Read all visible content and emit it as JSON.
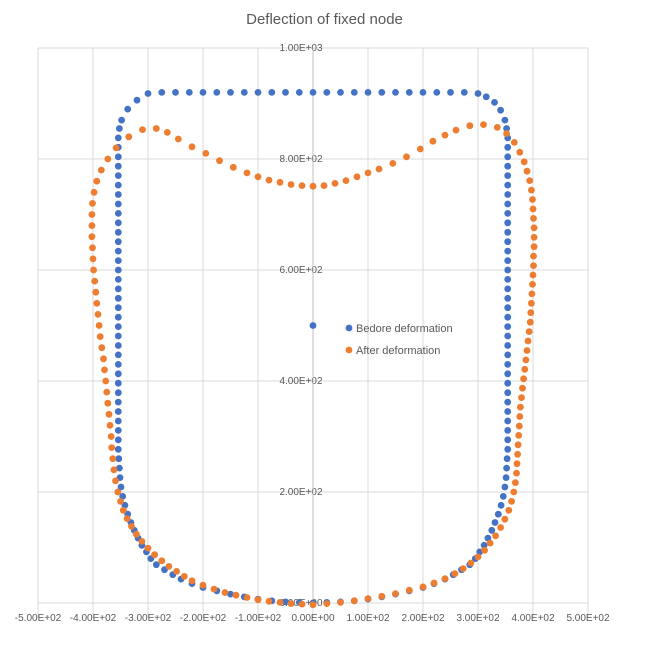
{
  "chart_data": {
    "type": "scatter",
    "title": "Deflection of fixed node",
    "xlabel": "",
    "ylabel": "",
    "xlim": [
      -500,
      500
    ],
    "ylim": [
      0,
      1000
    ],
    "x_ticks": [
      -500,
      -400,
      -300,
      -200,
      -100,
      0,
      100,
      200,
      300,
      400,
      500
    ],
    "x_tick_labels": [
      "-5.00E+02",
      "-4.00E+02",
      "-3.00E+02",
      "-2.00E+02",
      "-1.00E+02",
      "0.00E+00",
      "1.00E+02",
      "2.00E+02",
      "3.00E+02",
      "4.00E+02",
      "5.00E+02"
    ],
    "y_ticks": [
      0,
      200,
      400,
      600,
      800,
      1000
    ],
    "y_tick_labels": [
      "0.00E+00",
      "2.00E+02",
      "4.00E+02",
      "6.00E+02",
      "8.00E+02",
      "1.00E+03"
    ],
    "grid": true,
    "legend_position": "center-right",
    "series": [
      {
        "name": "Bedore deformation",
        "color": "#4472C4",
        "points": [
          [
            0,
            0
          ],
          [
            25,
            1
          ],
          [
            50,
            2
          ],
          [
            75,
            4
          ],
          [
            100,
            7
          ],
          [
            125,
            11
          ],
          [
            150,
            16
          ],
          [
            175,
            22
          ],
          [
            200,
            28
          ],
          [
            220,
            35
          ],
          [
            240,
            43
          ],
          [
            255,
            51
          ],
          [
            270,
            60
          ],
          [
            285,
            69
          ],
          [
            295,
            80
          ],
          [
            303,
            92
          ],
          [
            311,
            104
          ],
          [
            318,
            117
          ],
          [
            325,
            131
          ],
          [
            331,
            145
          ],
          [
            337,
            160
          ],
          [
            342,
            176
          ],
          [
            346,
            192
          ],
          [
            349,
            209
          ],
          [
            351,
            226
          ],
          [
            352,
            243
          ],
          [
            353,
            260
          ],
          [
            354,
            277
          ],
          [
            354,
            294
          ],
          [
            354,
            311
          ],
          [
            354,
            328
          ],
          [
            354,
            345
          ],
          [
            354,
            362
          ],
          [
            354,
            379
          ],
          [
            354,
            396
          ],
          [
            354,
            413
          ],
          [
            354,
            430
          ],
          [
            354,
            447
          ],
          [
            354,
            464
          ],
          [
            354,
            481
          ],
          [
            354,
            498
          ],
          [
            354,
            515
          ],
          [
            354,
            532
          ],
          [
            354,
            549
          ],
          [
            354,
            566
          ],
          [
            354,
            583
          ],
          [
            354,
            600
          ],
          [
            354,
            617
          ],
          [
            354,
            634
          ],
          [
            354,
            651
          ],
          [
            354,
            668
          ],
          [
            354,
            685
          ],
          [
            354,
            702
          ],
          [
            354,
            719
          ],
          [
            354,
            736
          ],
          [
            354,
            753
          ],
          [
            354,
            770
          ],
          [
            354,
            787
          ],
          [
            354,
            804
          ],
          [
            354,
            821
          ],
          [
            354,
            838
          ],
          [
            352,
            855
          ],
          [
            349,
            870
          ],
          [
            341,
            888
          ],
          [
            330,
            902
          ],
          [
            315,
            912
          ],
          [
            300,
            918
          ],
          [
            275,
            920
          ],
          [
            250,
            920
          ],
          [
            225,
            920
          ],
          [
            200,
            920
          ],
          [
            175,
            920
          ],
          [
            150,
            920
          ],
          [
            125,
            920
          ],
          [
            100,
            920
          ],
          [
            75,
            920
          ],
          [
            50,
            920
          ],
          [
            25,
            920
          ],
          [
            0,
            920
          ],
          [
            -25,
            920
          ],
          [
            -50,
            920
          ],
          [
            -75,
            920
          ],
          [
            -100,
            920
          ],
          [
            -125,
            920
          ],
          [
            -150,
            920
          ],
          [
            -175,
            920
          ],
          [
            -200,
            920
          ],
          [
            -225,
            920
          ],
          [
            -250,
            920
          ],
          [
            -275,
            920
          ],
          [
            -300,
            918
          ],
          [
            -320,
            906
          ],
          [
            -337,
            890
          ],
          [
            -348,
            870
          ],
          [
            -352,
            855
          ],
          [
            -354,
            838
          ],
          [
            -354,
            821
          ],
          [
            -354,
            804
          ],
          [
            -354,
            787
          ],
          [
            -354,
            770
          ],
          [
            -354,
            753
          ],
          [
            -354,
            736
          ],
          [
            -354,
            719
          ],
          [
            -354,
            702
          ],
          [
            -354,
            685
          ],
          [
            -354,
            668
          ],
          [
            -354,
            651
          ],
          [
            -354,
            634
          ],
          [
            -354,
            617
          ],
          [
            -354,
            600
          ],
          [
            -354,
            583
          ],
          [
            -354,
            566
          ],
          [
            -354,
            549
          ],
          [
            -354,
            532
          ],
          [
            -354,
            515
          ],
          [
            -354,
            498
          ],
          [
            -354,
            481
          ],
          [
            -354,
            464
          ],
          [
            -354,
            447
          ],
          [
            -354,
            430
          ],
          [
            -354,
            413
          ],
          [
            -354,
            396
          ],
          [
            -354,
            379
          ],
          [
            -354,
            362
          ],
          [
            -354,
            345
          ],
          [
            -354,
            328
          ],
          [
            -354,
            311
          ],
          [
            -354,
            294
          ],
          [
            -354,
            277
          ],
          [
            -353,
            260
          ],
          [
            -352,
            243
          ],
          [
            -351,
            226
          ],
          [
            -349,
            209
          ],
          [
            -346,
            192
          ],
          [
            -342,
            176
          ],
          [
            -337,
            160
          ],
          [
            -331,
            145
          ],
          [
            -325,
            131
          ],
          [
            -318,
            117
          ],
          [
            -311,
            104
          ],
          [
            -303,
            92
          ],
          [
            -295,
            80
          ],
          [
            -285,
            69
          ],
          [
            -270,
            60
          ],
          [
            -255,
            51
          ],
          [
            -240,
            43
          ],
          [
            -220,
            35
          ],
          [
            -200,
            28
          ],
          [
            -175,
            22
          ],
          [
            -150,
            16
          ],
          [
            -125,
            11
          ],
          [
            -100,
            7
          ],
          [
            -75,
            4
          ],
          [
            -50,
            2
          ],
          [
            -25,
            1
          ],
          [
            0,
            500
          ]
        ]
      },
      {
        "name": "After deformation",
        "color": "#ED7D31",
        "points": [
          [
            0,
            -3
          ],
          [
            25,
            -1
          ],
          [
            50,
            1
          ],
          [
            75,
            4
          ],
          [
            100,
            8
          ],
          [
            125,
            12
          ],
          [
            150,
            17
          ],
          [
            175,
            23
          ],
          [
            200,
            29
          ],
          [
            220,
            36
          ],
          [
            240,
            44
          ],
          [
            258,
            53
          ],
          [
            273,
            62
          ],
          [
            287,
            72
          ],
          [
            300,
            83
          ],
          [
            312,
            95
          ],
          [
            322,
            108
          ],
          [
            332,
            121
          ],
          [
            341,
            136
          ],
          [
            349,
            151
          ],
          [
            356,
            167
          ],
          [
            361,
            183
          ],
          [
            365,
            200
          ],
          [
            368,
            217
          ],
          [
            370,
            234
          ],
          [
            371,
            251
          ],
          [
            372,
            268
          ],
          [
            373,
            285
          ],
          [
            374,
            302
          ],
          [
            375,
            319
          ],
          [
            376,
            336
          ],
          [
            377,
            353
          ],
          [
            379,
            370
          ],
          [
            381,
            387
          ],
          [
            383,
            404
          ],
          [
            385,
            421
          ],
          [
            387,
            438
          ],
          [
            389,
            455
          ],
          [
            391,
            472
          ],
          [
            393,
            489
          ],
          [
            395,
            506
          ],
          [
            396,
            523
          ],
          [
            397,
            540
          ],
          [
            398,
            557
          ],
          [
            399,
            574
          ],
          [
            400,
            591
          ],
          [
            401,
            608
          ],
          [
            401,
            625
          ],
          [
            402,
            642
          ],
          [
            402,
            659
          ],
          [
            402,
            676
          ],
          [
            401,
            693
          ],
          [
            400,
            710
          ],
          [
            399,
            727
          ],
          [
            397,
            744
          ],
          [
            394,
            761
          ],
          [
            389,
            778
          ],
          [
            384,
            795
          ],
          [
            376,
            812
          ],
          [
            366,
            830
          ],
          [
            352,
            846
          ],
          [
            335,
            857
          ],
          [
            310,
            862
          ],
          [
            285,
            860
          ],
          [
            260,
            852
          ],
          [
            240,
            843
          ],
          [
            218,
            832
          ],
          [
            195,
            818
          ],
          [
            170,
            804
          ],
          [
            145,
            792
          ],
          [
            120,
            782
          ],
          [
            100,
            775
          ],
          [
            80,
            768
          ],
          [
            60,
            761
          ],
          [
            40,
            756
          ],
          [
            20,
            752
          ],
          [
            0,
            751
          ],
          [
            -20,
            752
          ],
          [
            -40,
            754
          ],
          [
            -60,
            758
          ],
          [
            -80,
            762
          ],
          [
            -100,
            768
          ],
          [
            -120,
            775
          ],
          [
            -145,
            785
          ],
          [
            -170,
            797
          ],
          [
            -195,
            810
          ],
          [
            -220,
            822
          ],
          [
            -245,
            836
          ],
          [
            -265,
            848
          ],
          [
            -285,
            855
          ],
          [
            -310,
            853
          ],
          [
            -335,
            840
          ],
          [
            -358,
            820
          ],
          [
            -373,
            800
          ],
          [
            -385,
            780
          ],
          [
            -393,
            760
          ],
          [
            -398,
            740
          ],
          [
            -401,
            720
          ],
          [
            -402,
            700
          ],
          [
            -402,
            680
          ],
          [
            -402,
            660
          ],
          [
            -401,
            640
          ],
          [
            -400,
            620
          ],
          [
            -399,
            600
          ],
          [
            -397,
            580
          ],
          [
            -395,
            560
          ],
          [
            -393,
            540
          ],
          [
            -391,
            520
          ],
          [
            -389,
            500
          ],
          [
            -387,
            480
          ],
          [
            -384,
            460
          ],
          [
            -381,
            440
          ],
          [
            -379,
            420
          ],
          [
            -377,
            400
          ],
          [
            -375,
            380
          ],
          [
            -373,
            360
          ],
          [
            -371,
            340
          ],
          [
            -369,
            320
          ],
          [
            -367,
            300
          ],
          [
            -366,
            280
          ],
          [
            -364,
            260
          ],
          [
            -362,
            240
          ],
          [
            -359,
            220
          ],
          [
            -355,
            200
          ],
          [
            -350,
            183
          ],
          [
            -345,
            167
          ],
          [
            -338,
            152
          ],
          [
            -330,
            138
          ],
          [
            -321,
            124
          ],
          [
            -311,
            111
          ],
          [
            -300,
            99
          ],
          [
            -288,
            87
          ],
          [
            -275,
            76
          ],
          [
            -262,
            66
          ],
          [
            -248,
            57
          ],
          [
            -234,
            48
          ],
          [
            -220,
            40
          ],
          [
            -200,
            32
          ],
          [
            -180,
            25
          ],
          [
            -160,
            19
          ],
          [
            -140,
            14
          ],
          [
            -120,
            10
          ],
          [
            -100,
            6
          ],
          [
            -80,
            3
          ],
          [
            -60,
            1
          ],
          [
            -40,
            -1
          ],
          [
            -20,
            -2
          ]
        ]
      }
    ]
  }
}
